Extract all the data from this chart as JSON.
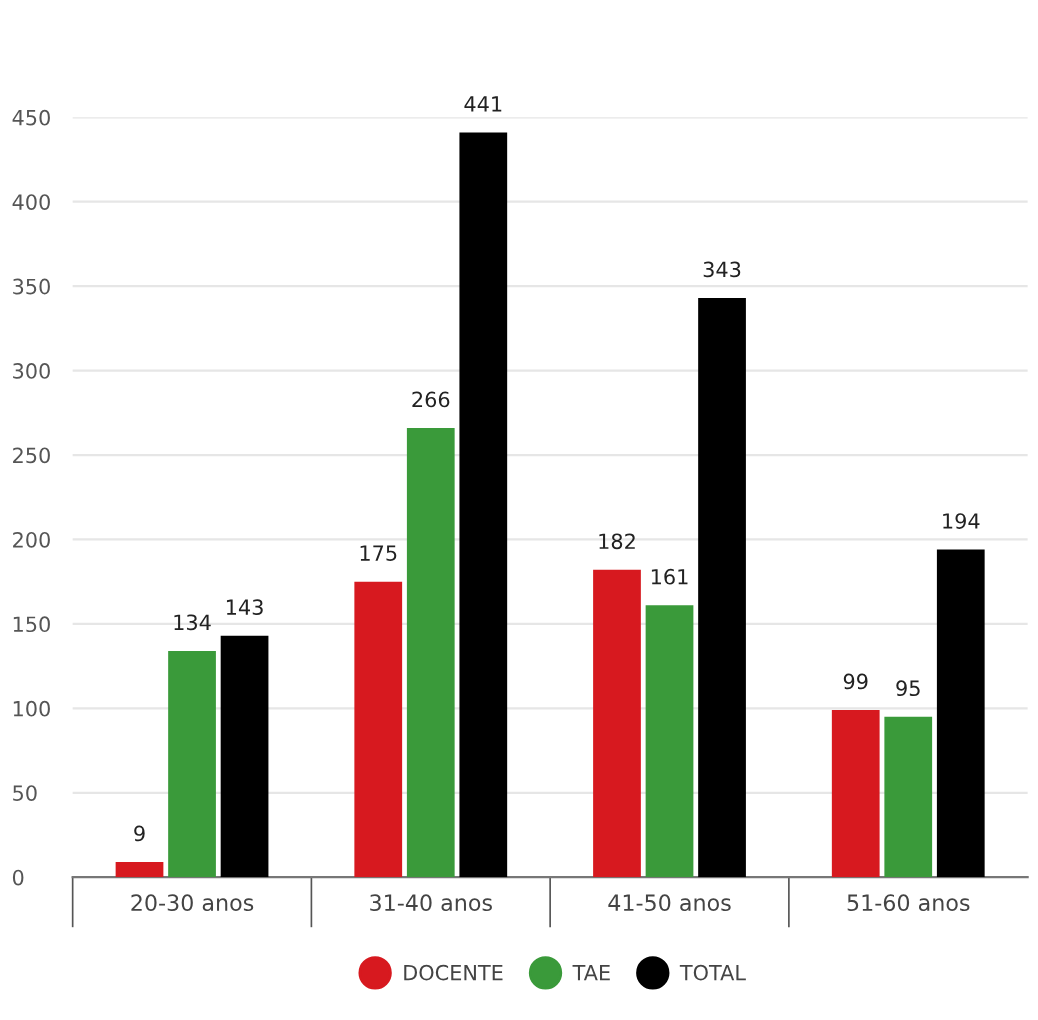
{
  "chart_data": {
    "type": "bar",
    "categories": [
      "20-30 anos",
      "31-40 anos",
      "41-50 anos",
      "51-60 anos"
    ],
    "series": [
      {
        "name": "DOCENTE",
        "color": "#d7191f",
        "values": [
          9,
          175,
          182,
          99
        ]
      },
      {
        "name": "TAE",
        "color": "#3a9a3a",
        "values": [
          134,
          266,
          161,
          95
        ]
      },
      {
        "name": "TOTAL",
        "color": "#000000",
        "values": [
          143,
          441,
          343,
          194
        ]
      }
    ],
    "ylim": [
      0,
      450
    ],
    "yticks": [
      0,
      50,
      100,
      150,
      200,
      250,
      300,
      350,
      400,
      450
    ],
    "grid": "y",
    "legend": "bottom",
    "data_labels": true
  }
}
